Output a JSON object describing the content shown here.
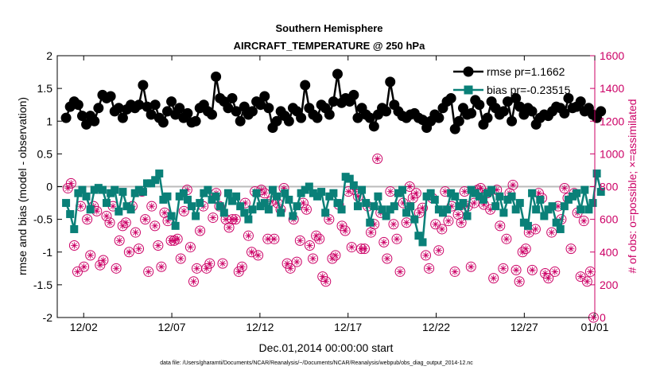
{
  "chart_data": {
    "type": "line",
    "title": "Southern Hemisphere",
    "subtitle": "AIRCRAFT_TEMPERATURE @ 250 hPa",
    "xlabel": "Dec.01,2014 00:00:00 start",
    "ylabel_left": "rmse and bias (model - observation)",
    "ylabel_right": "# of obs: o=possible; ×=assimilated",
    "x_range": [
      0.5,
      31.0
    ],
    "ylim_left": [
      -2,
      2
    ],
    "ylim_right": [
      0,
      1600
    ],
    "x_ticks": [
      {
        "x": 2,
        "label": "12/02"
      },
      {
        "x": 7,
        "label": "12/07"
      },
      {
        "x": 12,
        "label": "12/12"
      },
      {
        "x": 17,
        "label": "12/17"
      },
      {
        "x": 22,
        "label": "12/22"
      },
      {
        "x": 27,
        "label": "12/27"
      },
      {
        "x": 31,
        "label": "01/01"
      }
    ],
    "y_ticks_left": [
      "-2",
      "-1.5",
      "-1",
      "-0.5",
      "0",
      "0.5",
      "1",
      "1.5",
      "2"
    ],
    "y_ticks_right": [
      "0",
      "200",
      "400",
      "600",
      "800",
      "1000",
      "1200",
      "1400",
      "1600"
    ],
    "legend": [
      "rmse pr=1.1662",
      "bias pr=-0.23515"
    ],
    "footnote": "data file: /Users/gharamti/Documents/NCAR/Reanalysis/~/Documents/NCAR/Reanalysis/webpub/obs_diag_output_2014-12.nc",
    "colors": {
      "rmse": "#000000",
      "bias": "#0a8078",
      "obs": "#cc0066",
      "zero_line": "#bbbbbb"
    },
    "series": [
      {
        "name": "rmse",
        "axis": "left",
        "values": [
          1.05,
          1.22,
          1.3,
          1.25,
          1.08,
          0.95,
          1.08,
          1.0,
          1.2,
          1.4,
          1.35,
          1.38,
          1.15,
          1.2,
          1.05,
          1.18,
          1.25,
          1.2,
          1.25,
          1.55,
          1.22,
          1.1,
          1.25,
          1.05,
          0.98,
          1.15,
          1.3,
          1.1,
          1.2,
          1.05,
          1.12,
          0.98,
          1.0,
          1.2,
          1.25,
          1.15,
          1.1,
          1.68,
          1.35,
          1.3,
          1.2,
          1.35,
          1.15,
          1.0,
          1.22,
          1.1,
          1.15,
          1.3,
          1.25,
          1.38,
          1.2,
          0.9,
          1.0,
          1.15,
          1.08,
          1.0,
          1.2,
          1.15,
          1.05,
          1.55,
          1.2,
          1.1,
          1.05,
          1.25,
          1.2,
          1.1,
          1.3,
          1.72,
          1.28,
          1.35,
          1.3,
          1.4,
          1.05,
          1.2,
          1.1,
          1.05,
          0.92,
          1.1,
          1.2,
          1.15,
          1.6,
          1.25,
          1.15,
          1.08,
          1.05,
          1.1,
          1.12,
          1.05,
          1.02,
          0.9,
          1.0,
          1.1,
          1.05,
          1.2,
          1.3,
          1.35,
          0.88,
          1.0,
          1.2,
          1.1,
          1.12,
          1.32,
          1.25,
          0.95,
          1.05,
          1.3,
          1.2,
          1.1,
          1.15,
          1.3,
          1.0,
          1.35,
          1.22,
          1.1,
          1.2,
          1.15,
          0.95,
          1.05,
          1.1,
          1.08,
          1.15,
          1.22,
          1.2,
          1.12,
          1.35,
          1.2,
          1.22,
          1.3,
          1.15,
          1.2,
          1.1,
          1.05,
          1.15
        ],
        "x_start": 1.0,
        "x_step": 0.2299
      },
      {
        "name": "bias",
        "axis": "left",
        "values": [
          -0.25,
          -0.42,
          -0.65,
          -0.1,
          -0.05,
          -0.15,
          -0.35,
          -0.05,
          -0.02,
          -0.05,
          -0.25,
          -0.1,
          -0.05,
          -0.38,
          -0.08,
          -0.3,
          -0.35,
          -0.1,
          -0.05,
          -0.08,
          0.05,
          0.05,
          0.1,
          0.2,
          -0.2,
          -0.15,
          -0.45,
          -0.6,
          -0.15,
          -0.1,
          -0.2,
          -0.3,
          -0.45,
          -0.25,
          -0.1,
          -0.05,
          -0.2,
          -0.15,
          -0.3,
          -0.4,
          -0.1,
          -0.22,
          -0.15,
          -0.3,
          -0.4,
          -0.5,
          -0.35,
          -0.1,
          -0.3,
          -0.25,
          -0.35,
          -0.05,
          -0.15,
          -0.4,
          -0.1,
          -0.2,
          -0.45,
          -0.3,
          -0.1,
          -0.05,
          0.0,
          -0.1,
          -0.15,
          -0.08,
          -0.4,
          -0.15,
          -0.1,
          -0.25,
          -0.35,
          0.15,
          0.12,
          0.02,
          -0.3,
          -0.05,
          -0.25,
          -0.55,
          -0.3,
          -0.15,
          -0.35,
          -0.45,
          -0.35,
          -0.3,
          -0.1,
          -0.05,
          -0.4,
          -0.3,
          -0.5,
          -0.75,
          -0.85,
          -0.15,
          -0.1,
          -0.2,
          -0.35,
          -0.4,
          -0.35,
          -0.1,
          -0.15,
          -0.3,
          -0.25,
          -0.45,
          -0.05,
          -0.1,
          -0.15,
          -0.2,
          -0.1,
          -0.05,
          -0.3,
          -0.15,
          -0.4,
          -0.2,
          -0.15,
          -0.35,
          -0.25,
          -0.55,
          -0.6,
          -0.1,
          -0.35,
          -0.2,
          -0.45,
          -0.35,
          -0.3,
          -0.55,
          -0.65,
          -0.3,
          -0.2,
          -0.15,
          -0.1,
          -0.35,
          -0.05,
          -0.35,
          -0.25,
          0.2,
          -0.08
        ],
        "x_start": 1.0,
        "x_step": 0.2299
      },
      {
        "name": "obs_possible",
        "axis": "right",
        "values": [
          790,
          820,
          440,
          280,
          680,
          310,
          600,
          380,
          680,
          650,
          320,
          350,
          620,
          580,
          680,
          300,
          470,
          560,
          580,
          400,
          680,
          520,
          420,
          770,
          600,
          280,
          680,
          560,
          440,
          310,
          640,
          590,
          470,
          470,
          480,
          360,
          650,
          780,
          430,
          220,
          300,
          530,
          680,
          300,
          330,
          610,
          760,
          680,
          330,
          600,
          550,
          600,
          600,
          280,
          310,
          700,
          500,
          400,
          770,
          380,
          780,
          760,
          480,
          710,
          480,
          700,
          660,
          790,
          330,
          300,
          600,
          340,
          470,
          700,
          660,
          440,
          360,
          500,
          480,
          250,
          220,
          600,
          360,
          380,
          690,
          560,
          530,
          770,
          430,
          780,
          740,
          420,
          420,
          680,
          520,
          570,
          970,
          640,
          460,
          360,
          770,
          570,
          480,
          280,
          700,
          580,
          800,
          730,
          760,
          640,
          670,
          380,
          300,
          730,
          570,
          410,
          540,
          770,
          590,
          680,
          280,
          630,
          580,
          770,
          680,
          310,
          700,
          780,
          790,
          690,
          760,
          660,
          240,
          780,
          560,
          300,
          480,
          760,
          810,
          290,
          220,
          400,
          420,
          520,
          290,
          540,
          760,
          730,
          270,
          240,
          520,
          280,
          680,
          600,
          790,
          730,
          420,
          760,
          640,
          250,
          590,
          220,
          280,
          0
        ],
        "x_start": 1.1,
        "x_step": 0.183
      }
    ]
  }
}
